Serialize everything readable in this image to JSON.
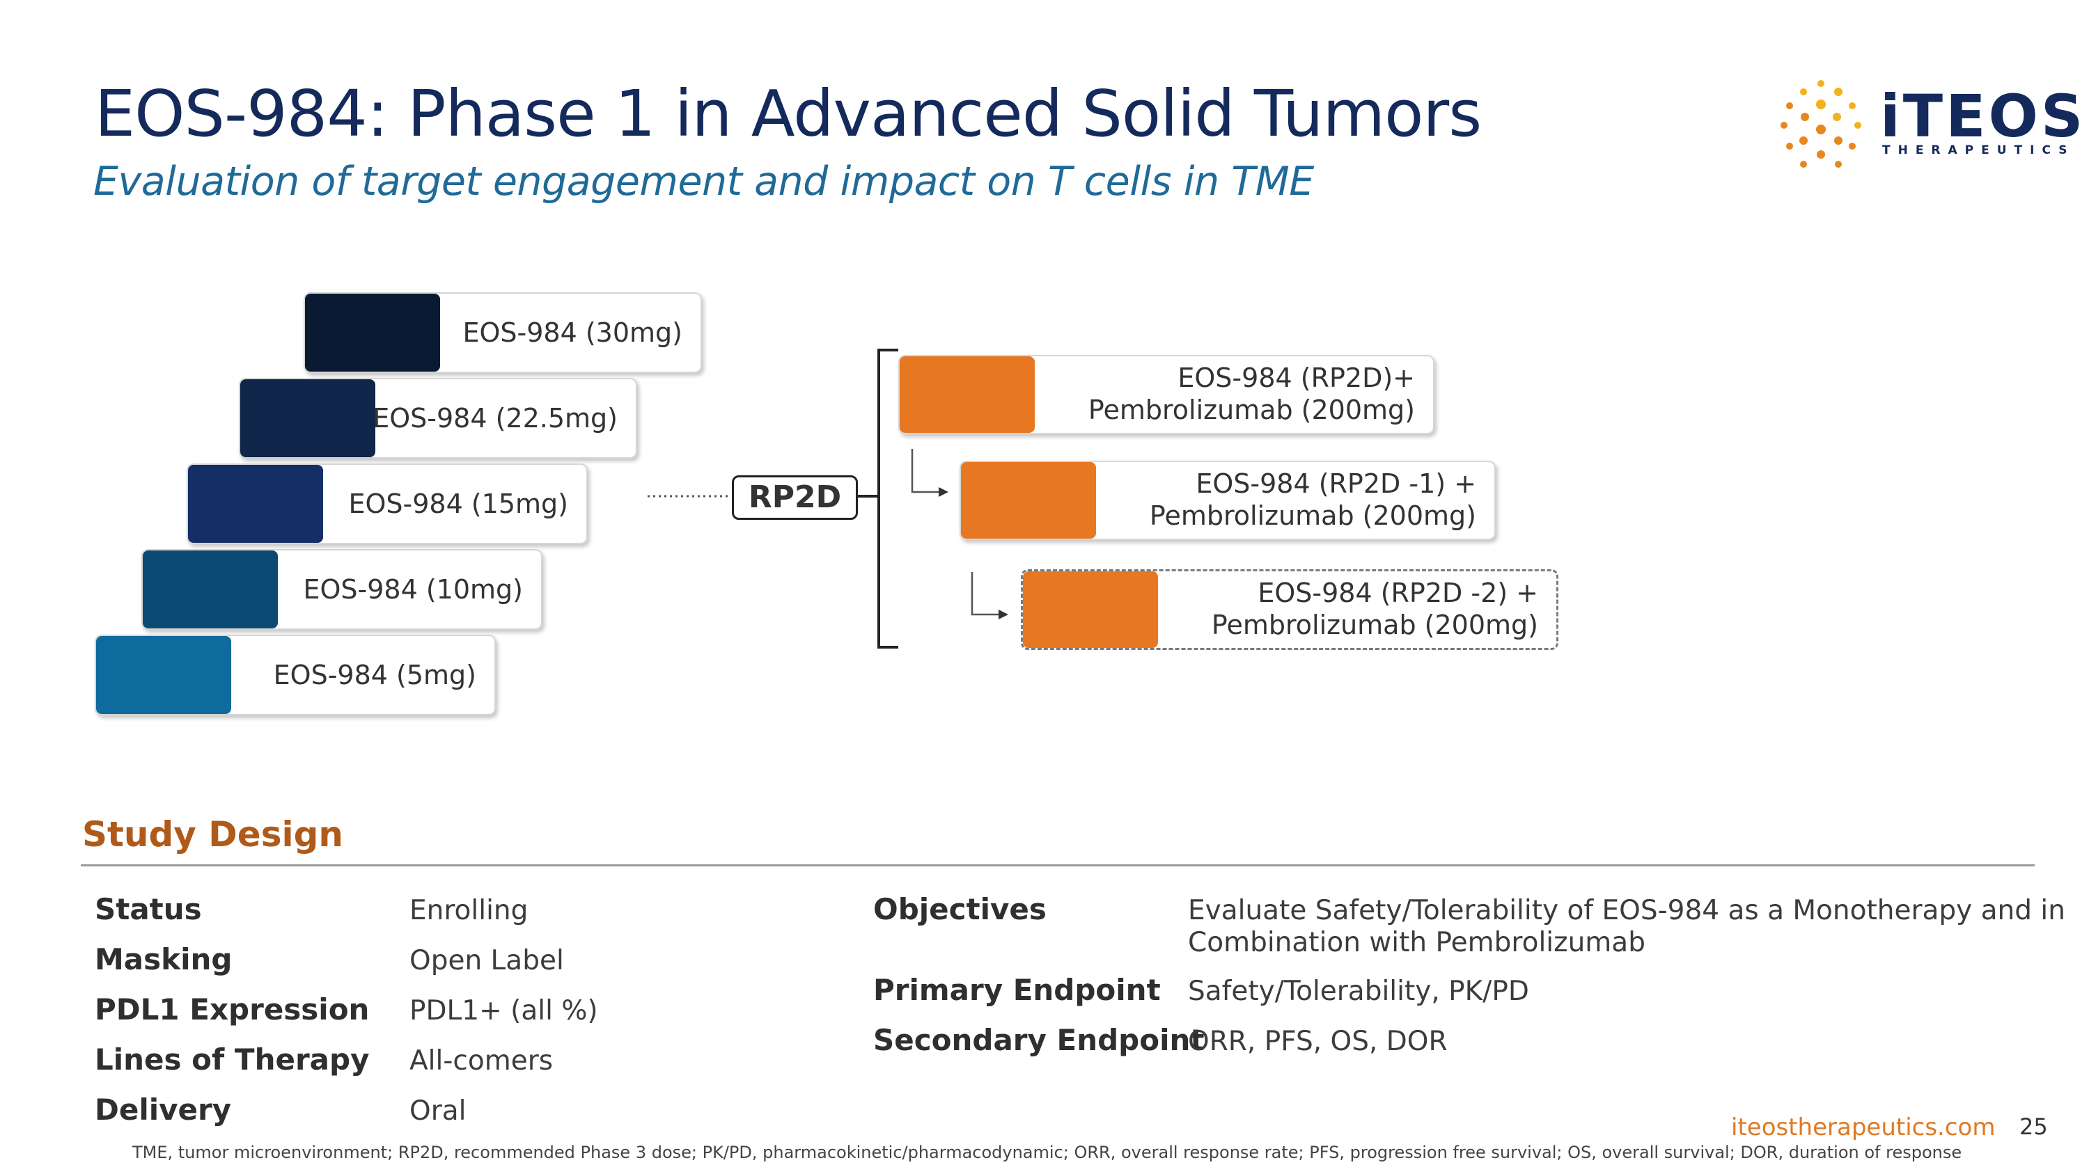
{
  "header": {
    "title": "EOS-984: Phase 1 in Advanced Solid Tumors",
    "subtitle": "Evaluation of target engagement and impact on T cells in TME"
  },
  "logo": {
    "wordmark": "iTEOS",
    "tagline": "THERAPEUTICS",
    "dot_colors": [
      "#f2b21b",
      "#e8871e"
    ]
  },
  "diagram": {
    "dose_levels": [
      {
        "label": "EOS-984 (30mg)",
        "color": "#0b1a33"
      },
      {
        "label": "EOS-984 (22.5mg)",
        "color": "#0f2549"
      },
      {
        "label": "EOS-984 (15mg)",
        "color": "#142f63"
      },
      {
        "label": "EOS-984 (10mg)",
        "color": "#0b4a72"
      },
      {
        "label": "EOS-984 (5mg)",
        "color": "#0f6a9e"
      }
    ],
    "rp2d_label": "RP2D",
    "combinations": [
      {
        "line1": "EOS-984 (RP2D)+",
        "line2": "Pembrolizumab (200mg)",
        "color": "#e87722",
        "dashed": false
      },
      {
        "line1": "EOS-984 (RP2D -1) +",
        "line2": "Pembrolizumab (200mg)",
        "color": "#e87722",
        "dashed": false
      },
      {
        "line1": "EOS-984 (RP2D -2) +",
        "line2": "Pembrolizumab (200mg)",
        "color": "#e87722",
        "dashed": true
      }
    ]
  },
  "study_design": {
    "title": "Study Design",
    "left_rows": [
      {
        "label": "Status",
        "value": "Enrolling"
      },
      {
        "label": "Masking",
        "value": "Open Label"
      },
      {
        "label": "PDL1 Expression",
        "value": "PDL1+ (all %)"
      },
      {
        "label": "Lines of Therapy",
        "value": "All-comers"
      },
      {
        "label": "Delivery",
        "value": "Oral"
      }
    ],
    "right_rows": [
      {
        "label": "Objectives",
        "value_line1": "Evaluate Safety/Tolerability of EOS-984 as a Monotherapy and in",
        "value_line2": "Combination with Pembrolizumab"
      },
      {
        "label": "Primary Endpoint",
        "value_line1": "Safety/Tolerability, PK/PD",
        "value_line2": ""
      },
      {
        "label": "Secondary Endpoint",
        "value_line1": "ORR, PFS, OS, DOR",
        "value_line2": ""
      }
    ]
  },
  "footer": {
    "url": "iteostherapeutics.com",
    "page_number": "25",
    "footnote": "TME, tumor microenvironment; RP2D, recommended Phase 3 dose; PK/PD, pharmacokinetic/pharmacodynamic; ORR, overall response rate; PFS, progression free survival; OS, overall survival; DOR, duration of response"
  }
}
